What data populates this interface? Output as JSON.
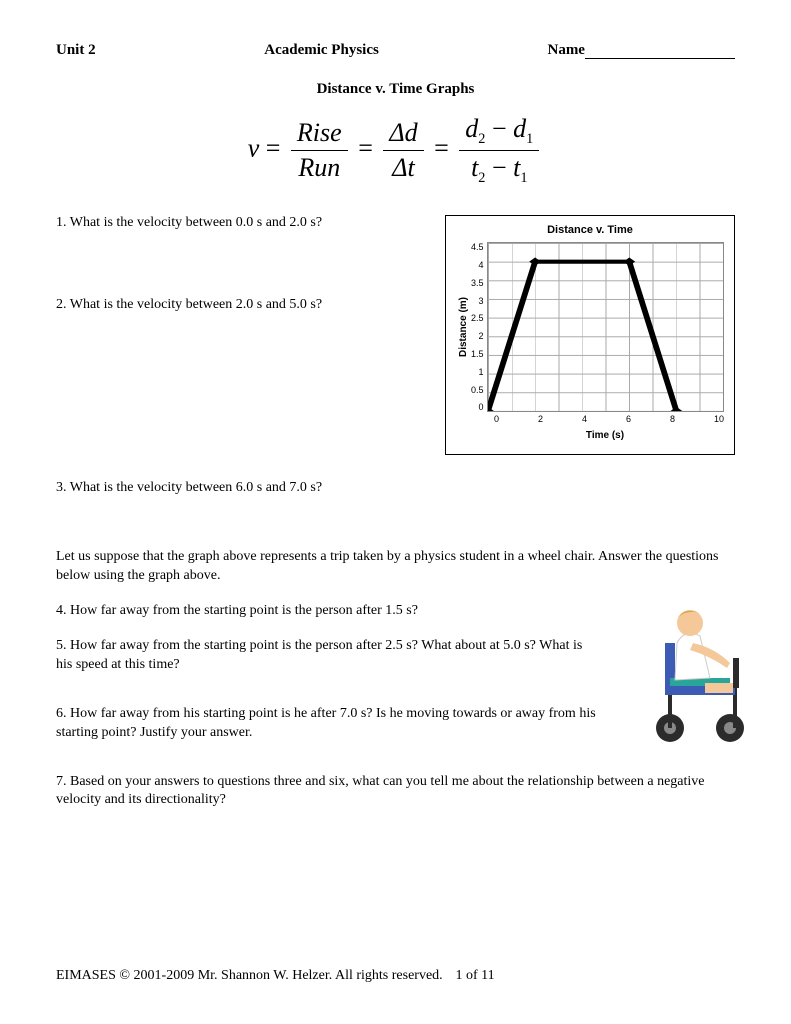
{
  "header": {
    "unit": "Unit 2",
    "course": "Academic Physics",
    "name_label": "Name"
  },
  "subtitle": "Distance v. Time Graphs",
  "formula": {
    "lhs": "v",
    "frac1_num": "Rise",
    "frac1_den": "Run",
    "frac2_num": "Δd",
    "frac2_den": "Δt",
    "frac3_num_a": "d",
    "frac3_num_sub1": "2",
    "frac3_num_b": "d",
    "frac3_num_sub2": "1",
    "frac3_den_a": "t",
    "frac3_den_sub1": "2",
    "frac3_den_b": "t",
    "frac3_den_sub2": "1"
  },
  "questions": {
    "q1": "1.  What is the velocity between 0.0 s and 2.0 s?",
    "q2": "2.  What is the velocity between 2.0 s and 5.0 s?",
    "q3": "3.  What is the velocity between 6.0 s and 7.0 s?",
    "intro": "Let us suppose that the graph above represents a trip taken by a physics student in a wheel chair.  Answer the questions below using the graph above.",
    "q4": "4.  How far away from the starting point is the person after 1.5 s?",
    "q5": "5.  How far away from the starting point is the person after 2.5 s?  What about at 5.0 s?  What is his speed at this time?",
    "q6": "6.  How far away from his starting point is he after 7.0 s?  Is he moving towards or away from his starting point?  Justify your answer.",
    "q7": "7.  Based on your answers to questions three and six, what can you tell me about the relationship between a negative velocity and its directionality?"
  },
  "chart": {
    "type": "line",
    "title": "Distance v. Time",
    "xlabel": "Time (s)",
    "ylabel": "Distance (m)",
    "xlim": [
      0,
      10
    ],
    "ylim": [
      0,
      4.5
    ],
    "xtick_step": 2,
    "ytick_step": 0.5,
    "xticks": [
      "0",
      "2",
      "4",
      "6",
      "8",
      "10"
    ],
    "yticks": [
      "4.5",
      "4",
      "3.5",
      "3",
      "2.5",
      "2",
      "1.5",
      "1",
      "0.5",
      "0"
    ],
    "points": [
      [
        0,
        0
      ],
      [
        2,
        4
      ],
      [
        6,
        4
      ],
      [
        8,
        0
      ]
    ],
    "line_color": "#000000",
    "line_width": 2.5,
    "marker": "diamond",
    "marker_size": 5,
    "marker_color": "#000000",
    "grid_color": "#aaaaaa",
    "background_color": "#ffffff",
    "title_fontsize": 11,
    "label_fontsize": 10,
    "tick_fontsize": 9
  },
  "illustration": {
    "name": "person-in-wheelchair",
    "skin_color": "#f5c89a",
    "hair_color": "#d9a441",
    "shirt_color": "#ffffff",
    "chair_seat_color": "#3b5bb5",
    "chair_cushion_color": "#2aa59a",
    "wheel_color": "#2b2b2b",
    "frame_color": "#2b2b2b"
  },
  "footer": {
    "copyright": "EIMASES © 2001-2009 Mr. Shannon W. Helzer.  All rights reserved.",
    "page": "1 of 11"
  }
}
